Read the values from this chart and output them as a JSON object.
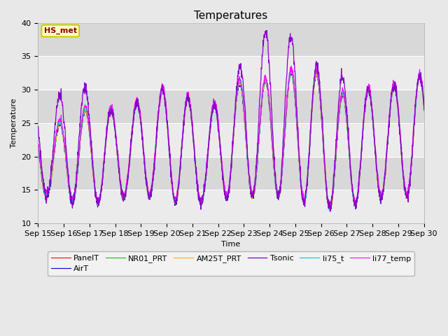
{
  "title": "Temperatures",
  "xlabel": "Time",
  "ylabel": "Temperature",
  "ylim": [
    10,
    40
  ],
  "xlim": [
    0,
    15
  ],
  "x_tick_labels": [
    "Sep 15",
    "Sep 16",
    "Sep 17",
    "Sep 18",
    "Sep 19",
    "Sep 20",
    "Sep 21",
    "Sep 22",
    "Sep 23",
    "Sep 24",
    "Sep 25",
    "Sep 26",
    "Sep 27",
    "Sep 28",
    "Sep 29",
    "Sep 30"
  ],
  "series": {
    "PanelT": {
      "color": "#ff0000",
      "lw": 0.8
    },
    "AirT": {
      "color": "#0000cc",
      "lw": 0.8
    },
    "NR01_PRT": {
      "color": "#00cc00",
      "lw": 0.8
    },
    "AM25T_PRT": {
      "color": "#ffaa00",
      "lw": 0.8
    },
    "Tsonic": {
      "color": "#8800cc",
      "lw": 0.9
    },
    "li75_t": {
      "color": "#00cccc",
      "lw": 0.8
    },
    "li77_temp": {
      "color": "#ff00ff",
      "lw": 0.8
    }
  },
  "annotation_text": "HS_met",
  "annotation_color": "#8b0000",
  "annotation_bg": "#ffffcc",
  "annotation_border": "#cccc00",
  "bg_color": "#e8e8e8",
  "band_dark": "#d8d8d8",
  "band_light": "#ebebeb",
  "title_fontsize": 11,
  "label_fontsize": 8,
  "tick_fontsize": 8
}
